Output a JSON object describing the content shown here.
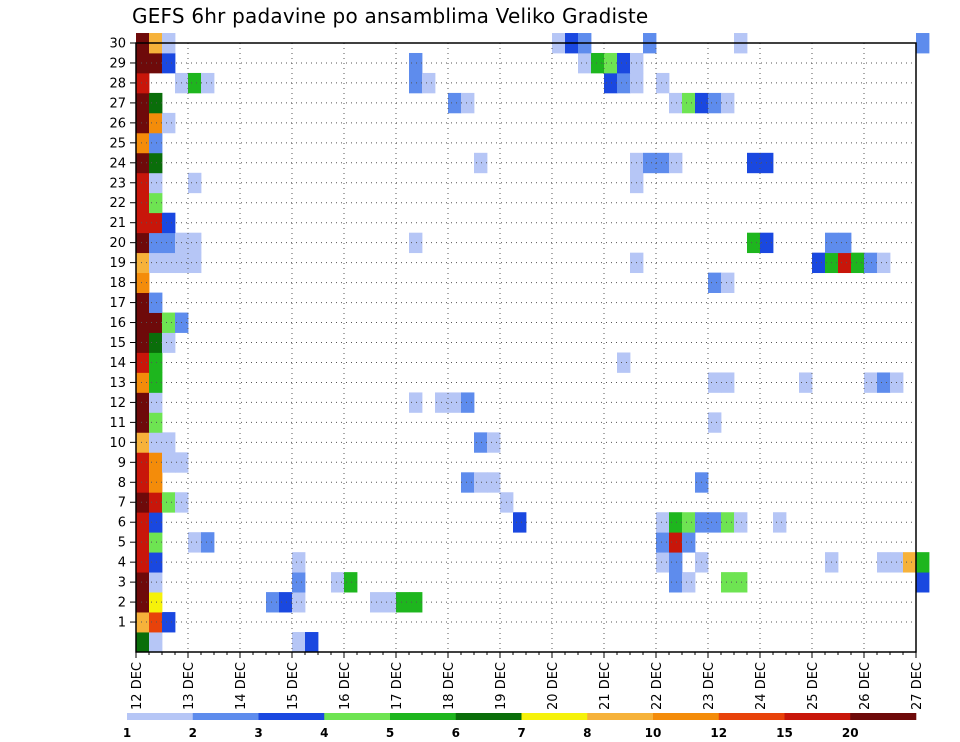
{
  "title": "GEFS 6hr padavine po ansamblima Veliko Gradiste",
  "chart_data": {
    "type": "heatmap",
    "title": "GEFS 6hr padavine po ansamblima Veliko Gradiste",
    "x_ticks": [
      "12 DEC",
      "13 DEC",
      "14 DEC",
      "15 DEC",
      "16 DEC",
      "17 DEC",
      "18 DEC",
      "19 DEC",
      "20 DEC",
      "21 DEC",
      "22 DEC",
      "23 DEC",
      "24 DEC",
      "25 DEC",
      "26 DEC",
      "27 DEC"
    ],
    "y_ticks": [
      "1",
      "2",
      "3",
      "4",
      "5",
      "6",
      "7",
      "8",
      "9",
      "10",
      "11",
      "12",
      "13",
      "14",
      "15",
      "16",
      "17",
      "18",
      "19",
      "20",
      "21",
      "22",
      "23",
      "24",
      "25",
      "26",
      "27",
      "28",
      "29",
      "30"
    ],
    "time_step_hours": 6,
    "ensemble_members": [
      0,
      30
    ],
    "grid": true,
    "legend": {
      "placement": "bottom",
      "labels": [
        "1",
        "2",
        "3",
        "4",
        "5",
        "6",
        "7",
        "8",
        "10",
        "12",
        "15",
        "20"
      ],
      "colors": [
        "#b6c6f6",
        "#5e8ced",
        "#1a48e0",
        "#6ee452",
        "#1eb61e",
        "#0a6e0a",
        "#f6f20a",
        "#f6b23a",
        "#f48c0a",
        "#e8420a",
        "#c8160a",
        "#6e0a0a"
      ]
    },
    "cells": [
      {
        "m": 0,
        "t": 0,
        "l": 6
      },
      {
        "m": 0,
        "t": 1,
        "l": 1
      },
      {
        "m": 0,
        "t": 12,
        "l": 1
      },
      {
        "m": 0,
        "t": 13,
        "l": 3
      },
      {
        "m": 1,
        "t": 0,
        "l": 8
      },
      {
        "m": 1,
        "t": 1,
        "l": 10
      },
      {
        "m": 1,
        "t": 2,
        "l": 3
      },
      {
        "m": 2,
        "t": 0,
        "l": 12
      },
      {
        "m": 2,
        "t": 1,
        "l": 7
      },
      {
        "m": 2,
        "t": 10,
        "l": 2
      },
      {
        "m": 2,
        "t": 11,
        "l": 3
      },
      {
        "m": 2,
        "t": 12,
        "l": 1
      },
      {
        "m": 2,
        "t": 18,
        "l": 1
      },
      {
        "m": 2,
        "t": 19,
        "l": 1
      },
      {
        "m": 2,
        "t": 20,
        "l": 5
      },
      {
        "m": 2,
        "t": 21,
        "l": 5
      },
      {
        "m": 3,
        "t": 0,
        "l": 12
      },
      {
        "m": 3,
        "t": 1,
        "l": 1
      },
      {
        "m": 3,
        "t": 12,
        "l": 2
      },
      {
        "m": 3,
        "t": 15,
        "l": 1
      },
      {
        "m": 3,
        "t": 16,
        "l": 5
      },
      {
        "m": 3,
        "t": 41,
        "l": 2
      },
      {
        "m": 3,
        "t": 42,
        "l": 1
      },
      {
        "m": 3,
        "t": 45,
        "l": 4
      },
      {
        "m": 3,
        "t": 46,
        "l": 4
      },
      {
        "m": 3,
        "t": 60,
        "l": 3
      },
      {
        "m": 4,
        "t": 0,
        "l": 11
      },
      {
        "m": 4,
        "t": 1,
        "l": 3
      },
      {
        "m": 4,
        "t": 12,
        "l": 1
      },
      {
        "m": 4,
        "t": 40,
        "l": 1
      },
      {
        "m": 4,
        "t": 41,
        "l": 2
      },
      {
        "m": 4,
        "t": 43,
        "l": 1
      },
      {
        "m": 4,
        "t": 53,
        "l": 1
      },
      {
        "m": 4,
        "t": 57,
        "l": 1
      },
      {
        "m": 4,
        "t": 58,
        "l": 1
      },
      {
        "m": 4,
        "t": 59,
        "l": 8
      },
      {
        "m": 4,
        "t": 60,
        "l": 5
      },
      {
        "m": 5,
        "t": 0,
        "l": 11
      },
      {
        "m": 5,
        "t": 1,
        "l": 4
      },
      {
        "m": 5,
        "t": 4,
        "l": 1
      },
      {
        "m": 5,
        "t": 5,
        "l": 2
      },
      {
        "m": 5,
        "t": 40,
        "l": 2
      },
      {
        "m": 5,
        "t": 41,
        "l": 11
      },
      {
        "m": 5,
        "t": 42,
        "l": 2
      },
      {
        "m": 6,
        "t": 0,
        "l": 11
      },
      {
        "m": 6,
        "t": 1,
        "l": 3
      },
      {
        "m": 6,
        "t": 29,
        "l": 3
      },
      {
        "m": 6,
        "t": 40,
        "l": 1
      },
      {
        "m": 6,
        "t": 41,
        "l": 5
      },
      {
        "m": 6,
        "t": 42,
        "l": 4
      },
      {
        "m": 6,
        "t": 43,
        "l": 2
      },
      {
        "m": 6,
        "t": 44,
        "l": 2
      },
      {
        "m": 6,
        "t": 45,
        "l": 4
      },
      {
        "m": 6,
        "t": 46,
        "l": 1
      },
      {
        "m": 6,
        "t": 49,
        "l": 1
      },
      {
        "m": 7,
        "t": 0,
        "l": 12
      },
      {
        "m": 7,
        "t": 1,
        "l": 11
      },
      {
        "m": 7,
        "t": 2,
        "l": 4
      },
      {
        "m": 7,
        "t": 3,
        "l": 1
      },
      {
        "m": 7,
        "t": 28,
        "l": 1
      },
      {
        "m": 8,
        "t": 0,
        "l": 11
      },
      {
        "m": 8,
        "t": 1,
        "l": 9
      },
      {
        "m": 8,
        "t": 25,
        "l": 2
      },
      {
        "m": 8,
        "t": 26,
        "l": 1
      },
      {
        "m": 8,
        "t": 27,
        "l": 1
      },
      {
        "m": 8,
        "t": 43,
        "l": 2
      },
      {
        "m": 9,
        "t": 0,
        "l": 11
      },
      {
        "m": 9,
        "t": 1,
        "l": 9
      },
      {
        "m": 9,
        "t": 2,
        "l": 1
      },
      {
        "m": 9,
        "t": 3,
        "l": 1
      },
      {
        "m": 10,
        "t": 0,
        "l": 8
      },
      {
        "m": 10,
        "t": 1,
        "l": 1
      },
      {
        "m": 10,
        "t": 2,
        "l": 1
      },
      {
        "m": 10,
        "t": 26,
        "l": 2
      },
      {
        "m": 10,
        "t": 27,
        "l": 1
      },
      {
        "m": 11,
        "t": 0,
        "l": 12
      },
      {
        "m": 11,
        "t": 1,
        "l": 4
      },
      {
        "m": 11,
        "t": 44,
        "l": 1
      },
      {
        "m": 12,
        "t": 0,
        "l": 12
      },
      {
        "m": 12,
        "t": 1,
        "l": 1
      },
      {
        "m": 12,
        "t": 21,
        "l": 1
      },
      {
        "m": 12,
        "t": 23,
        "l": 1
      },
      {
        "m": 12,
        "t": 24,
        "l": 1
      },
      {
        "m": 12,
        "t": 25,
        "l": 2
      },
      {
        "m": 13,
        "t": 0,
        "l": 9
      },
      {
        "m": 13,
        "t": 1,
        "l": 5
      },
      {
        "m": 13,
        "t": 44,
        "l": 1
      },
      {
        "m": 13,
        "t": 45,
        "l": 1
      },
      {
        "m": 13,
        "t": 51,
        "l": 1
      },
      {
        "m": 13,
        "t": 56,
        "l": 1
      },
      {
        "m": 13,
        "t": 57,
        "l": 2
      },
      {
        "m": 13,
        "t": 58,
        "l": 1
      },
      {
        "m": 14,
        "t": 0,
        "l": 11
      },
      {
        "m": 14,
        "t": 1,
        "l": 5
      },
      {
        "m": 14,
        "t": 37,
        "l": 1
      },
      {
        "m": 15,
        "t": 0,
        "l": 12
      },
      {
        "m": 15,
        "t": 1,
        "l": 6
      },
      {
        "m": 15,
        "t": 2,
        "l": 1
      },
      {
        "m": 16,
        "t": 0,
        "l": 12
      },
      {
        "m": 16,
        "t": 1,
        "l": 12
      },
      {
        "m": 16,
        "t": 2,
        "l": 4
      },
      {
        "m": 16,
        "t": 3,
        "l": 2
      },
      {
        "m": 17,
        "t": 0,
        "l": 12
      },
      {
        "m": 17,
        "t": 1,
        "l": 2
      },
      {
        "m": 18,
        "t": 0,
        "l": 9
      },
      {
        "m": 18,
        "t": 44,
        "l": 2
      },
      {
        "m": 18,
        "t": 45,
        "l": 1
      },
      {
        "m": 19,
        "t": 0,
        "l": 8
      },
      {
        "m": 19,
        "t": 1,
        "l": 1
      },
      {
        "m": 19,
        "t": 2,
        "l": 1
      },
      {
        "m": 19,
        "t": 3,
        "l": 1
      },
      {
        "m": 19,
        "t": 4,
        "l": 1
      },
      {
        "m": 19,
        "t": 38,
        "l": 1
      },
      {
        "m": 19,
        "t": 52,
        "l": 3
      },
      {
        "m": 19,
        "t": 53,
        "l": 5
      },
      {
        "m": 19,
        "t": 54,
        "l": 11
      },
      {
        "m": 19,
        "t": 55,
        "l": 5
      },
      {
        "m": 19,
        "t": 56,
        "l": 2
      },
      {
        "m": 19,
        "t": 57,
        "l": 1
      },
      {
        "m": 20,
        "t": 0,
        "l": 12
      },
      {
        "m": 20,
        "t": 1,
        "l": 2
      },
      {
        "m": 20,
        "t": 2,
        "l": 2
      },
      {
        "m": 20,
        "t": 3,
        "l": 1
      },
      {
        "m": 20,
        "t": 4,
        "l": 1
      },
      {
        "m": 20,
        "t": 21,
        "l": 1
      },
      {
        "m": 20,
        "t": 47,
        "l": 5
      },
      {
        "m": 20,
        "t": 48,
        "l": 3
      },
      {
        "m": 20,
        "t": 53,
        "l": 2
      },
      {
        "m": 20,
        "t": 54,
        "l": 2
      },
      {
        "m": 21,
        "t": 0,
        "l": 11
      },
      {
        "m": 21,
        "t": 1,
        "l": 11
      },
      {
        "m": 21,
        "t": 2,
        "l": 3
      },
      {
        "m": 22,
        "t": 0,
        "l": 11
      },
      {
        "m": 22,
        "t": 1,
        "l": 4
      },
      {
        "m": 23,
        "t": 0,
        "l": 11
      },
      {
        "m": 23,
        "t": 1,
        "l": 1
      },
      {
        "m": 23,
        "t": 4,
        "l": 1
      },
      {
        "m": 23,
        "t": 38,
        "l": 1
      },
      {
        "m": 24,
        "t": 0,
        "l": 12
      },
      {
        "m": 24,
        "t": 1,
        "l": 6
      },
      {
        "m": 24,
        "t": 26,
        "l": 1
      },
      {
        "m": 24,
        "t": 38,
        "l": 1
      },
      {
        "m": 24,
        "t": 39,
        "l": 2
      },
      {
        "m": 24,
        "t": 40,
        "l": 2
      },
      {
        "m": 24,
        "t": 41,
        "l": 1
      },
      {
        "m": 24,
        "t": 47,
        "l": 3
      },
      {
        "m": 24,
        "t": 48,
        "l": 3
      },
      {
        "m": 25,
        "t": 0,
        "l": 9
      },
      {
        "m": 25,
        "t": 1,
        "l": 2
      },
      {
        "m": 26,
        "t": 0,
        "l": 12
      },
      {
        "m": 26,
        "t": 1,
        "l": 9
      },
      {
        "m": 26,
        "t": 2,
        "l": 1
      },
      {
        "m": 27,
        "t": 0,
        "l": 12
      },
      {
        "m": 27,
        "t": 1,
        "l": 6
      },
      {
        "m": 27,
        "t": 24,
        "l": 2
      },
      {
        "m": 27,
        "t": 25,
        "l": 1
      },
      {
        "m": 27,
        "t": 41,
        "l": 1
      },
      {
        "m": 27,
        "t": 42,
        "l": 4
      },
      {
        "m": 27,
        "t": 43,
        "l": 3
      },
      {
        "m": 27,
        "t": 44,
        "l": 2
      },
      {
        "m": 27,
        "t": 45,
        "l": 1
      },
      {
        "m": 28,
        "t": 0,
        "l": 11
      },
      {
        "m": 28,
        "t": 3,
        "l": 1
      },
      {
        "m": 28,
        "t": 4,
        "l": 5
      },
      {
        "m": 28,
        "t": 5,
        "l": 1
      },
      {
        "m": 28,
        "t": 21,
        "l": 2
      },
      {
        "m": 28,
        "t": 22,
        "l": 1
      },
      {
        "m": 28,
        "t": 36,
        "l": 3
      },
      {
        "m": 28,
        "t": 37,
        "l": 2
      },
      {
        "m": 28,
        "t": 38,
        "l": 1
      },
      {
        "m": 28,
        "t": 40,
        "l": 1
      },
      {
        "m": 29,
        "t": 0,
        "l": 12
      },
      {
        "m": 29,
        "t": 1,
        "l": 12
      },
      {
        "m": 29,
        "t": 2,
        "l": 3
      },
      {
        "m": 29,
        "t": 21,
        "l": 2
      },
      {
        "m": 29,
        "t": 34,
        "l": 1
      },
      {
        "m": 29,
        "t": 35,
        "l": 5
      },
      {
        "m": 29,
        "t": 36,
        "l": 4
      },
      {
        "m": 29,
        "t": 37,
        "l": 3
      },
      {
        "m": 29,
        "t": 38,
        "l": 1
      },
      {
        "m": 30,
        "t": 0,
        "l": 12
      },
      {
        "m": 30,
        "t": 1,
        "l": 8
      },
      {
        "m": 30,
        "t": 2,
        "l": 1
      },
      {
        "m": 30,
        "t": 32,
        "l": 1
      },
      {
        "m": 30,
        "t": 33,
        "l": 3
      },
      {
        "m": 30,
        "t": 34,
        "l": 2
      },
      {
        "m": 30,
        "t": 39,
        "l": 2
      },
      {
        "m": 30,
        "t": 46,
        "l": 1
      },
      {
        "m": 30,
        "t": 60,
        "l": 2
      }
    ]
  }
}
